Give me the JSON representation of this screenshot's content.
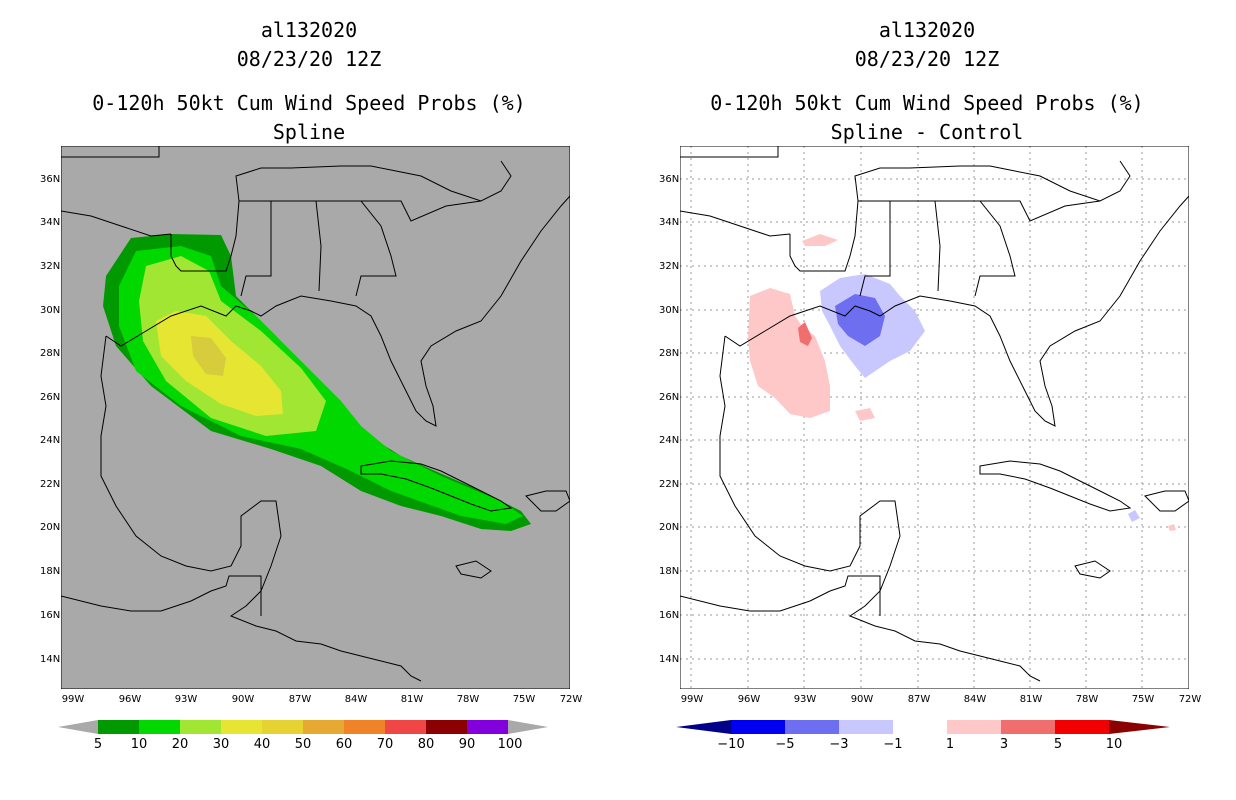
{
  "left_panel": {
    "storm_id": "al132020",
    "datetime": "08/23/20 12Z",
    "product": "0-120h 50kt Cum Wind Speed Probs (%)",
    "subtitle": "Spline",
    "background_color": "#a9a9a9",
    "colorbar": {
      "colors": [
        "#a9a9a9",
        "#009a00",
        "#00d800",
        "#a0e632",
        "#e6e632",
        "#e6d232",
        "#e6aa32",
        "#f08228",
        "#f04646",
        "#8b0000",
        "#8200dc",
        "#a9a9a9"
      ],
      "labels": [
        "5",
        "10",
        "20",
        "30",
        "40",
        "50",
        "60",
        "70",
        "80",
        "90",
        "100"
      ]
    }
  },
  "right_panel": {
    "storm_id": "al132020",
    "datetime": "08/23/20 12Z",
    "product": "0-120h 50kt Cum Wind Speed Probs (%)",
    "subtitle": "Spline - Control",
    "background_color": "#ffffff",
    "colorbar": {
      "colors": [
        "#00008b",
        "#0000f0",
        "#6e6ef0",
        "#c8c8ff",
        "#ffffff",
        "#ffc8c8",
        "#f06e6e",
        "#f00000",
        "#8b0000"
      ],
      "labels": [
        "−10",
        "−5",
        "−3",
        "−1",
        "1",
        "3",
        "5",
        "10"
      ]
    }
  },
  "lat_labels": [
    "36N",
    "34N",
    "32N",
    "30N",
    "28N",
    "26N",
    "24N",
    "22N",
    "20N",
    "18N",
    "16N",
    "14N"
  ],
  "lon_labels": [
    "99W",
    "96W",
    "93W",
    "90W",
    "87W",
    "84W",
    "81W",
    "78W",
    "75W",
    "72W"
  ]
}
